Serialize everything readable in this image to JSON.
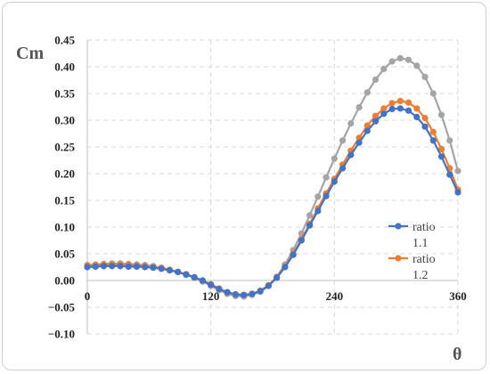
{
  "chart_data": {
    "type": "line",
    "title": "",
    "xlabel": "θ",
    "ylabel": "Cm",
    "xlim": [
      0,
      360
    ],
    "ylim": [
      -0.1,
      0.45
    ],
    "xticks": [
      "0",
      "120",
      "240",
      "360"
    ],
    "xtick_values": [
      0,
      120,
      240,
      360
    ],
    "yticks": [
      "0.45",
      "0.40",
      "0.35",
      "0.30",
      "0.25",
      "0.20",
      "0.15",
      "0.10",
      "0.05",
      "0.00",
      "−0.05",
      "−0.10"
    ],
    "ytick_values": [
      0.45,
      0.4,
      0.35,
      0.3,
      0.25,
      0.2,
      0.15,
      0.1,
      0.05,
      0.0,
      -0.05,
      -0.1
    ],
    "grid": true,
    "legend_position": "right",
    "x": [
      0,
      8,
      16,
      24,
      32,
      40,
      48,
      56,
      64,
      72,
      80,
      88,
      96,
      104,
      112,
      120,
      128,
      136,
      144,
      152,
      160,
      168,
      176,
      184,
      192,
      200,
      208,
      216,
      224,
      232,
      240,
      248,
      256,
      264,
      272,
      280,
      288,
      296,
      304,
      312,
      320,
      328,
      336,
      344,
      352,
      360
    ],
    "series": [
      {
        "name": "ratio 1.1",
        "color": "#4472c4",
        "values": [
          0.025,
          0.026,
          0.027,
          0.027,
          0.027,
          0.026,
          0.026,
          0.025,
          0.024,
          0.022,
          0.019,
          0.016,
          0.011,
          0.006,
          0.0,
          -0.008,
          -0.016,
          -0.022,
          -0.026,
          -0.027,
          -0.025,
          -0.02,
          -0.01,
          0.005,
          0.025,
          0.048,
          0.075,
          0.103,
          0.13,
          0.158,
          0.185,
          0.21,
          0.235,
          0.258,
          0.28,
          0.298,
          0.312,
          0.321,
          0.322,
          0.318,
          0.306,
          0.288,
          0.262,
          0.232,
          0.198,
          0.165
        ]
      },
      {
        "name": "ratio 1.2",
        "color": "#ed7d31",
        "values": [
          0.028,
          0.029,
          0.03,
          0.03,
          0.03,
          0.029,
          0.028,
          0.027,
          0.025,
          0.023,
          0.02,
          0.016,
          0.012,
          0.006,
          0.0,
          -0.007,
          -0.015,
          -0.022,
          -0.026,
          -0.027,
          -0.025,
          -0.019,
          -0.009,
          0.006,
          0.026,
          0.05,
          0.077,
          0.106,
          0.135,
          0.163,
          0.19,
          0.217,
          0.243,
          0.267,
          0.29,
          0.308,
          0.322,
          0.332,
          0.336,
          0.333,
          0.322,
          0.304,
          0.278,
          0.246,
          0.21,
          0.17
        ]
      },
      {
        "name": "",
        "color": "#a5a5a5",
        "values": [
          0.029,
          0.03,
          0.031,
          0.032,
          0.032,
          0.031,
          0.03,
          0.029,
          0.027,
          0.024,
          0.02,
          0.016,
          0.011,
          0.005,
          -0.002,
          -0.01,
          -0.018,
          -0.025,
          -0.029,
          -0.03,
          -0.027,
          -0.021,
          -0.01,
          0.007,
          0.03,
          0.057,
          0.088,
          0.122,
          0.157,
          0.193,
          0.228,
          0.262,
          0.294,
          0.324,
          0.352,
          0.376,
          0.396,
          0.41,
          0.416,
          0.413,
          0.402,
          0.381,
          0.35,
          0.31,
          0.262,
          0.205
        ]
      }
    ],
    "legend": [
      {
        "label_line1": "ratio",
        "label_line2": "1.1"
      },
      {
        "label_line1": "ratio",
        "label_line2": "1.2"
      }
    ]
  }
}
